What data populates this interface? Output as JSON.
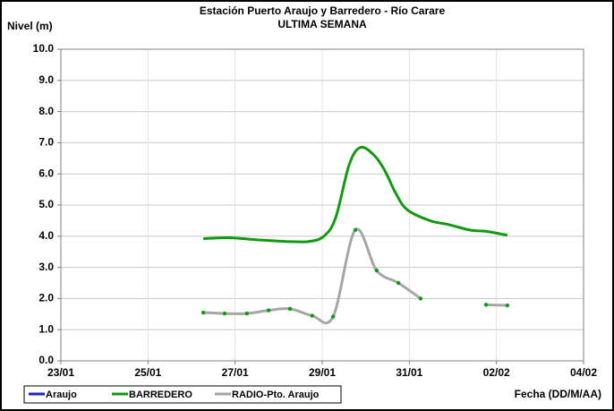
{
  "chart_data": {
    "type": "line",
    "title": "Estación Puerto Araujo y Barredero - Río Carare",
    "subtitle": "ULTIMA SEMANA",
    "y_label": "Nivel (m)",
    "x_label": "Fecha (DD/M/AA)",
    "xlim": [
      0,
      12
    ],
    "xticks": [
      {
        "value": 0,
        "label": "23/01"
      },
      {
        "value": 2,
        "label": "25/01"
      },
      {
        "value": 4,
        "label": "27/01"
      },
      {
        "value": 6,
        "label": "29/01"
      },
      {
        "value": 8,
        "label": "31/01"
      },
      {
        "value": 10,
        "label": "02/02"
      },
      {
        "value": 12,
        "label": "04/02"
      }
    ],
    "ylim": [
      0,
      10
    ],
    "yticks": [
      {
        "value": 0,
        "label": "0.0"
      },
      {
        "value": 1,
        "label": "1.0"
      },
      {
        "value": 2,
        "label": "2.0"
      },
      {
        "value": 3,
        "label": "3.0"
      },
      {
        "value": 4,
        "label": "4.0"
      },
      {
        "value": 5,
        "label": "5.0"
      },
      {
        "value": 6,
        "label": "6.0"
      },
      {
        "value": 7,
        "label": "7.0"
      },
      {
        "value": 8,
        "label": "8.0"
      },
      {
        "value": 9,
        "label": "9.0"
      },
      {
        "value": 10,
        "label": "10.0"
      }
    ],
    "grid": true,
    "legend": "bottom",
    "series": [
      {
        "name": "Araujo",
        "color": "#1f1fd0",
        "markers": false,
        "x": [],
        "values": []
      },
      {
        "name": "BARREDERO",
        "color": "#119911",
        "markers": false,
        "x": [
          3.27,
          3.84,
          4.56,
          5.18,
          5.69,
          6.04,
          6.31,
          6.62,
          6.88,
          7.19,
          7.44,
          7.68,
          7.95,
          8.47,
          8.88,
          9.39,
          9.8,
          10.25
        ],
        "values": [
          3.92,
          3.95,
          3.88,
          3.83,
          3.83,
          4.0,
          4.6,
          6.3,
          6.85,
          6.6,
          6.1,
          5.4,
          4.85,
          4.5,
          4.38,
          4.2,
          4.15,
          4.03
        ]
      },
      {
        "name": "RADIO-Pto. Araujo",
        "color": "#a6a6a6",
        "markers": true,
        "marker_color": "#119911",
        "x": [
          3.27,
          3.76,
          4.27,
          4.77,
          5.26,
          5.77,
          6.25,
          6.76,
          7.25,
          7.75,
          8.26,
          9.0,
          9.76,
          10.25
        ],
        "values": [
          1.55,
          1.52,
          1.52,
          1.62,
          1.67,
          1.45,
          1.42,
          4.2,
          2.9,
          2.5,
          2.0,
          null,
          1.8,
          1.78
        ]
      }
    ]
  }
}
